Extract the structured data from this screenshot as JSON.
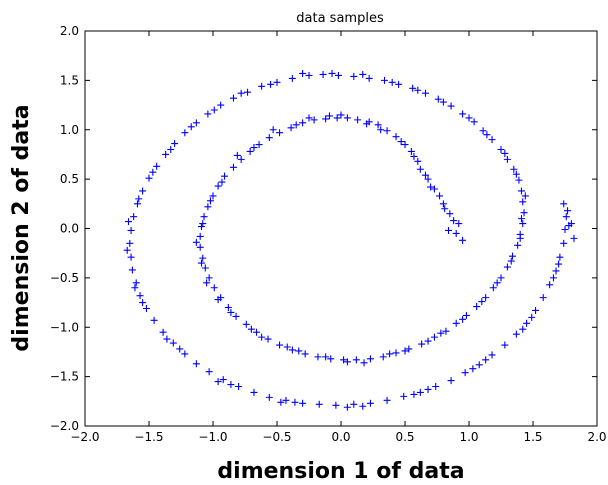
{
  "chart_data": {
    "type": "scatter",
    "title": "data samples",
    "xlabel": "dimension 1 of data",
    "ylabel": "dimension 2 of data",
    "xlim": [
      -2.0,
      2.0
    ],
    "ylim": [
      -2.0,
      2.0
    ],
    "xticks": [
      "−2.0",
      "−1.5",
      "−1.0",
      "−0.5",
      "0.0",
      "0.5",
      "1.0",
      "1.5",
      "2.0"
    ],
    "yticks": [
      "2.0",
      "1.5",
      "1.0",
      "0.5",
      "0.0",
      "−0.5",
      "−1.0",
      "−1.5",
      "−2.0"
    ],
    "marker": "+",
    "color": "#0000ff",
    "grid": false,
    "legend": false,
    "series": [
      {
        "shape": "two interleaved spirals",
        "points": [
          [
            0.9,
            -0.05
          ],
          [
            0.85,
            0.15
          ],
          [
            0.77,
            0.33
          ],
          [
            0.68,
            0.5
          ],
          [
            0.6,
            0.68
          ],
          [
            0.5,
            0.85
          ],
          [
            0.36,
            0.99
          ],
          [
            0.22,
            1.08
          ],
          [
            0.05,
            1.12
          ],
          [
            -0.12,
            1.11
          ],
          [
            -0.3,
            1.07
          ],
          [
            -0.48,
            0.97
          ],
          [
            -0.64,
            0.85
          ],
          [
            -0.78,
            0.7
          ],
          [
            -0.91,
            0.53
          ],
          [
            -1.0,
            0.33
          ],
          [
            -1.07,
            0.12
          ],
          [
            -1.1,
            -0.08
          ],
          [
            -1.08,
            -0.3
          ],
          [
            -1.03,
            -0.5
          ],
          [
            -0.94,
            -0.7
          ],
          [
            -0.82,
            -0.89
          ],
          [
            -0.66,
            -1.05
          ],
          [
            -0.48,
            -1.18
          ],
          [
            -0.28,
            -1.27
          ],
          [
            -0.08,
            -1.32
          ],
          [
            0.12,
            -1.33
          ],
          [
            0.33,
            -1.3
          ],
          [
            0.53,
            -1.22
          ],
          [
            0.73,
            -1.1
          ],
          [
            0.9,
            -0.96
          ],
          [
            1.06,
            -0.79
          ],
          [
            1.19,
            -0.6
          ],
          [
            1.3,
            -0.39
          ],
          [
            1.38,
            -0.17
          ],
          [
            1.42,
            0.05
          ],
          [
            1.42,
            0.27
          ],
          [
            1.39,
            0.49
          ],
          [
            1.3,
            0.7
          ],
          [
            1.18,
            0.9
          ],
          [
            1.04,
            1.08
          ],
          [
            0.86,
            1.24
          ],
          [
            0.66,
            1.37
          ],
          [
            0.45,
            1.46
          ],
          [
            0.22,
            1.52
          ],
          [
            -0.02,
            1.55
          ],
          [
            -0.25,
            1.55
          ],
          [
            -0.5,
            1.48
          ],
          [
            -0.73,
            1.38
          ],
          [
            -0.94,
            1.25
          ],
          [
            -1.13,
            1.07
          ],
          [
            -1.3,
            0.86
          ],
          [
            -1.44,
            0.63
          ],
          [
            -1.55,
            0.38
          ],
          [
            -1.62,
            0.12
          ],
          [
            -1.65,
            -0.15
          ],
          [
            -1.63,
            -0.42
          ],
          [
            -1.57,
            -0.68
          ],
          [
            -1.46,
            -0.93
          ],
          [
            -1.31,
            -1.16
          ],
          [
            -1.13,
            -1.37
          ],
          [
            -0.92,
            -1.53
          ],
          [
            -0.68,
            -1.66
          ],
          [
            -0.43,
            -1.74
          ],
          [
            -0.17,
            -1.78
          ],
          [
            0.1,
            -1.78
          ],
          [
            0.36,
            -1.74
          ],
          [
            0.62,
            -1.66
          ],
          [
            0.86,
            -1.54
          ],
          [
            1.08,
            -1.38
          ],
          [
            1.28,
            -1.18
          ],
          [
            1.45,
            -0.96
          ],
          [
            1.58,
            -0.7
          ],
          [
            1.68,
            -0.43
          ],
          [
            1.74,
            -0.15
          ],
          [
            1.76,
            0.12
          ],
          [
            0.92,
            0.05
          ],
          [
            0.8,
            0.25
          ],
          [
            0.7,
            0.42
          ],
          [
            0.62,
            0.6
          ],
          [
            0.55,
            0.78
          ],
          [
            0.43,
            0.93
          ],
          [
            0.29,
            1.05
          ],
          [
            0.13,
            1.1
          ],
          [
            -0.03,
            1.12
          ],
          [
            -0.21,
            1.1
          ],
          [
            -0.39,
            1.02
          ],
          [
            -0.56,
            0.92
          ],
          [
            -0.71,
            0.78
          ],
          [
            -0.84,
            0.62
          ],
          [
            -0.96,
            0.43
          ],
          [
            -1.04,
            0.22
          ],
          [
            -1.09,
            0.02
          ],
          [
            -1.1,
            -0.19
          ],
          [
            -1.06,
            -0.4
          ],
          [
            -0.99,
            -0.6
          ],
          [
            -0.88,
            -0.8
          ],
          [
            -0.74,
            -0.97
          ],
          [
            -0.57,
            -1.12
          ],
          [
            -0.38,
            -1.23
          ],
          [
            -0.18,
            -1.3
          ],
          [
            0.02,
            -1.33
          ],
          [
            0.23,
            -1.32
          ],
          [
            0.43,
            -1.26
          ],
          [
            0.63,
            -1.17
          ],
          [
            0.82,
            -1.04
          ],
          [
            0.98,
            -0.88
          ],
          [
            1.13,
            -0.7
          ],
          [
            1.25,
            -0.5
          ],
          [
            1.34,
            -0.28
          ],
          [
            1.4,
            -0.06
          ],
          [
            1.43,
            0.16
          ],
          [
            1.41,
            0.38
          ],
          [
            1.35,
            0.6
          ],
          [
            1.25,
            0.8
          ],
          [
            1.11,
            0.99
          ],
          [
            0.95,
            1.16
          ],
          [
            0.76,
            1.31
          ],
          [
            0.56,
            1.42
          ],
          [
            0.34,
            1.5
          ],
          [
            0.1,
            1.54
          ],
          [
            -0.14,
            1.56
          ],
          [
            -0.38,
            1.52
          ],
          [
            -0.62,
            1.44
          ],
          [
            -0.84,
            1.32
          ],
          [
            -1.04,
            1.16
          ],
          [
            -1.22,
            0.97
          ],
          [
            -1.37,
            0.75
          ],
          [
            -1.5,
            0.51
          ],
          [
            -1.59,
            0.25
          ],
          [
            -1.64,
            -0.02
          ],
          [
            -1.64,
            -0.29
          ],
          [
            -1.6,
            -0.55
          ],
          [
            -1.52,
            -0.81
          ],
          [
            -1.39,
            -1.05
          ],
          [
            -1.22,
            -1.27
          ],
          [
            -1.03,
            -1.45
          ],
          [
            -0.8,
            -1.6
          ],
          [
            -0.56,
            -1.71
          ],
          [
            -0.3,
            -1.77
          ],
          [
            -0.04,
            -1.79
          ],
          [
            0.23,
            -1.77
          ],
          [
            0.49,
            -1.7
          ],
          [
            0.74,
            -1.6
          ],
          [
            0.97,
            -1.46
          ],
          [
            1.18,
            -1.28
          ],
          [
            1.37,
            -1.07
          ],
          [
            1.52,
            -0.83
          ],
          [
            1.63,
            -0.57
          ],
          [
            1.71,
            -0.29
          ],
          [
            1.75,
            -0.01
          ],
          [
            1.8,
            0.05
          ],
          [
            0.95,
            -0.12
          ],
          [
            0.88,
            0.08
          ],
          [
            0.73,
            0.4
          ],
          [
            0.57,
            0.73
          ],
          [
            0.31,
            1.0
          ],
          [
            0.0,
            1.15
          ],
          [
            -0.25,
            1.12
          ],
          [
            -0.53,
            1.0
          ],
          [
            -0.81,
            0.74
          ],
          [
            -1.02,
            0.28
          ],
          [
            -1.13,
            -0.14
          ],
          [
            -1.05,
            -0.55
          ],
          [
            -0.86,
            -0.85
          ],
          [
            -0.62,
            -1.1
          ],
          [
            -0.33,
            -1.24
          ],
          [
            0.05,
            -1.35
          ],
          [
            0.38,
            -1.27
          ],
          [
            0.68,
            -1.14
          ],
          [
            0.95,
            -0.92
          ],
          [
            1.22,
            -0.55
          ],
          [
            1.4,
            -0.1
          ],
          [
            1.44,
            0.33
          ],
          [
            1.28,
            0.76
          ],
          [
            1.0,
            1.12
          ],
          [
            0.6,
            1.4
          ],
          [
            0.17,
            1.56
          ],
          [
            -0.3,
            1.57
          ],
          [
            -0.78,
            1.37
          ],
          [
            -1.17,
            1.03
          ],
          [
            -1.47,
            0.57
          ],
          [
            -1.66,
            0.07
          ],
          [
            -1.61,
            -0.6
          ],
          [
            -1.36,
            -1.12
          ],
          [
            -0.96,
            -1.55
          ],
          [
            -0.47,
            -1.76
          ],
          [
            0.05,
            -1.81
          ],
          [
            0.57,
            -1.68
          ],
          [
            1.03,
            -1.42
          ],
          [
            1.42,
            -1.02
          ],
          [
            1.66,
            -0.5
          ],
          [
            1.78,
            0.03
          ],
          [
            0.84,
            -0.02
          ],
          [
            0.81,
            0.2
          ],
          [
            0.66,
            0.54
          ],
          [
            0.47,
            0.88
          ],
          [
            0.2,
            1.06
          ],
          [
            -0.09,
            1.14
          ],
          [
            -0.35,
            1.05
          ],
          [
            -0.68,
            0.82
          ],
          [
            -0.93,
            0.47
          ],
          [
            -1.08,
            0.05
          ],
          [
            -1.09,
            -0.35
          ],
          [
            -0.96,
            -0.72
          ],
          [
            -0.7,
            -1.02
          ],
          [
            -0.42,
            -1.2
          ],
          [
            -0.12,
            -1.3
          ],
          [
            0.18,
            -1.36
          ],
          [
            0.5,
            -1.24
          ],
          [
            0.78,
            -1.06
          ],
          [
            1.1,
            -0.74
          ],
          [
            1.33,
            -0.33
          ],
          [
            1.41,
            0.1
          ],
          [
            1.37,
            0.55
          ],
          [
            1.14,
            0.95
          ],
          [
            0.8,
            1.28
          ],
          [
            0.4,
            1.48
          ],
          [
            -0.07,
            1.57
          ],
          [
            -0.55,
            1.46
          ],
          [
            -0.99,
            1.2
          ],
          [
            -1.33,
            0.8
          ],
          [
            -1.58,
            0.3
          ],
          [
            -1.67,
            -0.22
          ],
          [
            -1.55,
            -0.75
          ],
          [
            -1.26,
            -1.22
          ],
          [
            -0.86,
            -1.58
          ],
          [
            -0.36,
            -1.76
          ],
          [
            0.17,
            -1.8
          ],
          [
            0.68,
            -1.63
          ],
          [
            1.13,
            -1.33
          ],
          [
            1.49,
            -0.9
          ],
          [
            1.7,
            -0.36
          ],
          [
            1.77,
            0.18
          ],
          [
            1.82,
            -0.1
          ],
          [
            1.74,
            0.25
          ]
        ]
      }
    ]
  }
}
